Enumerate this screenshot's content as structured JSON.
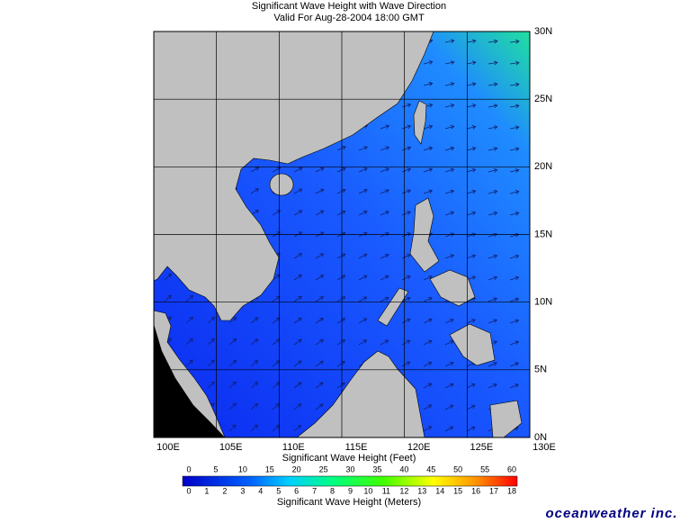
{
  "header": {
    "title": "Significant Wave Height with Wave Direction",
    "subtitle": "Valid For Aug-28-2004 18:00 GMT"
  },
  "map": {
    "lat_labels": [
      "0N",
      "5N",
      "10N",
      "15N",
      "20N",
      "25N",
      "30N"
    ],
    "lon_labels": [
      "100E",
      "105E",
      "110E",
      "115E",
      "120E",
      "125E",
      "130E"
    ]
  },
  "colorbar": {
    "feet_title": "Significant Wave Height (Feet)",
    "feet_ticks": [
      0,
      5,
      10,
      15,
      20,
      25,
      30,
      35,
      40,
      45,
      50,
      55,
      60
    ],
    "meters_title": "Significant Wave Height (Meters)",
    "meters_ticks": [
      0,
      1,
      2,
      3,
      4,
      5,
      6,
      7,
      8,
      9,
      10,
      11,
      12,
      13,
      14,
      15,
      16,
      17,
      18
    ]
  },
  "brand": "oceanweather inc."
}
